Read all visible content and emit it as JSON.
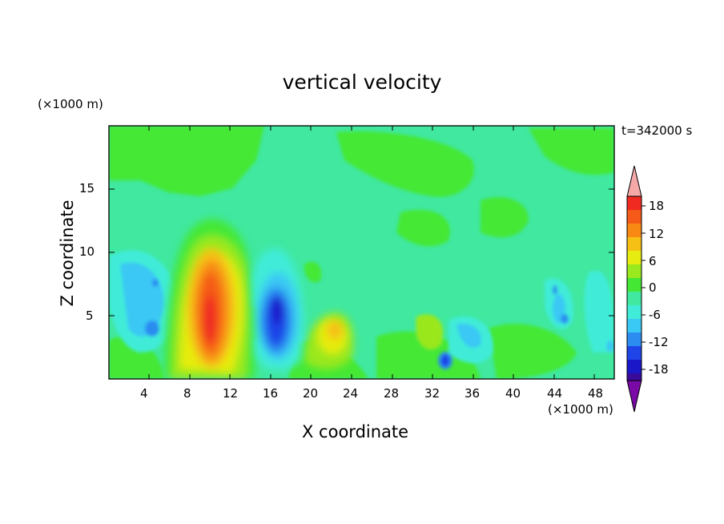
{
  "chart_data": {
    "type": "heatmap",
    "title": "vertical velocity",
    "xlabel": "X coordinate",
    "ylabel": "Z coordinate",
    "x_unit": "(×1000 m)",
    "y_unit": "(×1000 m)",
    "time_label": "t=342000 s",
    "xlim": [
      0,
      50
    ],
    "ylim": [
      0,
      20
    ],
    "x_ticks": [
      "4",
      "8",
      "12",
      "16",
      "20",
      "24",
      "28",
      "32",
      "36",
      "40",
      "44",
      "48"
    ],
    "y_ticks": [
      "5",
      "10",
      "15"
    ],
    "colorbar": {
      "tick_labels": [
        "18",
        "12",
        "6",
        "0",
        "-6",
        "-12",
        "-18"
      ],
      "levels": [
        -21,
        -18,
        -15,
        -12,
        -9,
        -6,
        -3,
        0,
        3,
        6,
        9,
        12,
        15,
        18,
        21
      ],
      "colors": [
        "#7a0aa5",
        "#3a0a9a",
        "#1a17c8",
        "#1f45e8",
        "#2c8cf0",
        "#3ac8f4",
        "#40ecd8",
        "#40e8a0",
        "#44e834",
        "#9ae81e",
        "#e6ec10",
        "#f6c014",
        "#f88a14",
        "#f55a18",
        "#f02a20",
        "#f4a8a8"
      ],
      "extend": "both"
    },
    "features": [
      {
        "x": 10,
        "z": 5,
        "value": 17
      },
      {
        "x": 22,
        "z": 3.5,
        "value": 9
      },
      {
        "x": 17,
        "z": 5.5,
        "value": -14
      },
      {
        "x": 4,
        "z": 6,
        "value": -8
      },
      {
        "x": 33,
        "z": 2,
        "value": -13
      },
      {
        "x": 44.5,
        "z": 5,
        "value": -8
      }
    ]
  }
}
